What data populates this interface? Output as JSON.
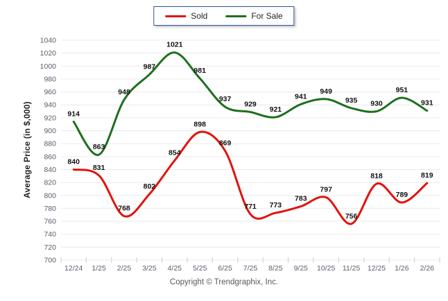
{
  "legend": {
    "items": [
      {
        "label": "Sold",
        "color": "#e3120c"
      },
      {
        "label": "For Sale",
        "color": "#1d6f1d"
      }
    ]
  },
  "footer": {
    "copyright": "Copyright © Trendgraphix, Inc."
  },
  "chart_data": {
    "type": "line",
    "title": "",
    "xlabel": "",
    "ylabel": "Average Price (in $,000)",
    "ylim": [
      700,
      1040
    ],
    "ytick_step": 20,
    "grid": "horizontal",
    "legend_position": "top-center",
    "line_style": "smooth",
    "categories": [
      "12/24",
      "1/25",
      "2/25",
      "3/25",
      "4/25",
      "5/25",
      "6/25",
      "7/25",
      "8/25",
      "9/25",
      "10/25",
      "11/25",
      "12/25",
      "1/26",
      "2/26"
    ],
    "series": [
      {
        "name": "Sold",
        "color": "#e3120c",
        "values": [
          840,
          831,
          768,
          802,
          854,
          898,
          869,
          771,
          773,
          783,
          797,
          756,
          818,
          789,
          819
        ]
      },
      {
        "name": "For Sale",
        "color": "#1d6f1d",
        "values": [
          914,
          863,
          948,
          987,
          1021,
          981,
          937,
          929,
          921,
          941,
          949,
          935,
          930,
          951,
          931
        ]
      }
    ]
  },
  "style": {
    "gridline_color": "#e9e9e9",
    "tick_color": "#c9cdd6",
    "axis_text_color": "#5b5b6b",
    "data_label_color": "#111111"
  }
}
